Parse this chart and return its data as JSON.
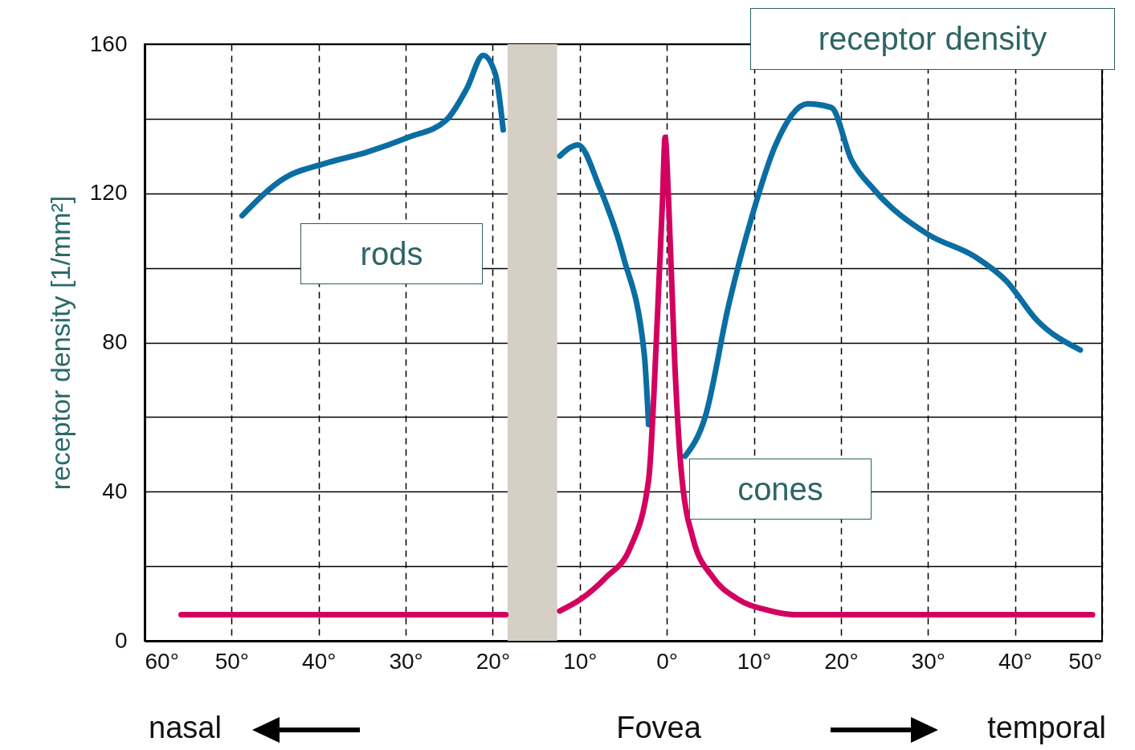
{
  "chart_data": {
    "type": "line",
    "title": "receptor density",
    "ylabel": "receptor density [1/mm²]",
    "xlim": [
      -60,
      50
    ],
    "ylim": [
      0,
      160
    ],
    "xticks": [
      {
        "value": -60,
        "label": "60°"
      },
      {
        "value": -50,
        "label": "50°"
      },
      {
        "value": -40,
        "label": "40°"
      },
      {
        "value": -30,
        "label": "30°"
      },
      {
        "value": -20,
        "label": "20°"
      },
      {
        "value": -10,
        "label": "10°"
      },
      {
        "value": 0,
        "label": "0°"
      },
      {
        "value": 10,
        "label": "10°"
      },
      {
        "value": 20,
        "label": "20°"
      },
      {
        "value": 30,
        "label": "30°"
      },
      {
        "value": 40,
        "label": "40°"
      },
      {
        "value": 50,
        "label": "50°"
      }
    ],
    "yticks": [
      0,
      {
        "value": 20,
        "label": null
      },
      40,
      {
        "value": 60,
        "label": null
      },
      80,
      {
        "value": 100,
        "label": null
      },
      120,
      {
        "value": 140,
        "label": null
      },
      160
    ],
    "grid": true,
    "legend": false,
    "line_style": "solid",
    "marker": "none",
    "bands": [
      {
        "axis": "x",
        "from": -18.3,
        "to": -12.6,
        "color": "#d6cfc6"
      }
    ],
    "annotations": [
      "nasal",
      "Fovea",
      "temporal"
    ],
    "series": [
      {
        "name": "rods",
        "color": "#0a6ea3",
        "x": [
          -48.8,
          -44,
          -39.3,
          -34.5,
          -29.7,
          -25.4,
          -23,
          -21.1,
          -19.7,
          -18.8,
          -15,
          -12.3,
          -10.2,
          -7.8,
          -5,
          -2.6,
          -2.1,
          0,
          2.1,
          4.4,
          7.1,
          9.8,
          12.5,
          16.2,
          18.9,
          21.2,
          23.8,
          30,
          35.4,
          39,
          42.5,
          47.5
        ],
        "values": [
          114,
          124,
          128,
          131,
          135,
          139.5,
          148,
          157,
          152,
          137,
          null,
          130,
          133,
          122,
          103,
          77,
          58,
          null,
          49.5,
          60,
          90,
          114,
          133,
          144,
          143,
          129,
          121,
          109,
          103,
          96.5,
          86,
          78
        ]
      },
      {
        "name": "cones",
        "color": "#d4005f",
        "x": [
          -55.8,
          -18.5,
          -15,
          -12.3,
          -10,
          -7,
          -4.2,
          -2.1,
          -1.1,
          -0.5,
          -0.2,
          0.2,
          0.9,
          1.6,
          3,
          5.3,
          8,
          11.6,
          14.6,
          48.9
        ],
        "values": [
          7,
          7,
          null,
          8,
          11,
          17,
          25,
          43,
          86,
          118,
          135,
          118,
          75,
          47,
          27.5,
          17,
          11.4,
          8.2,
          7,
          7
        ]
      }
    ]
  }
}
